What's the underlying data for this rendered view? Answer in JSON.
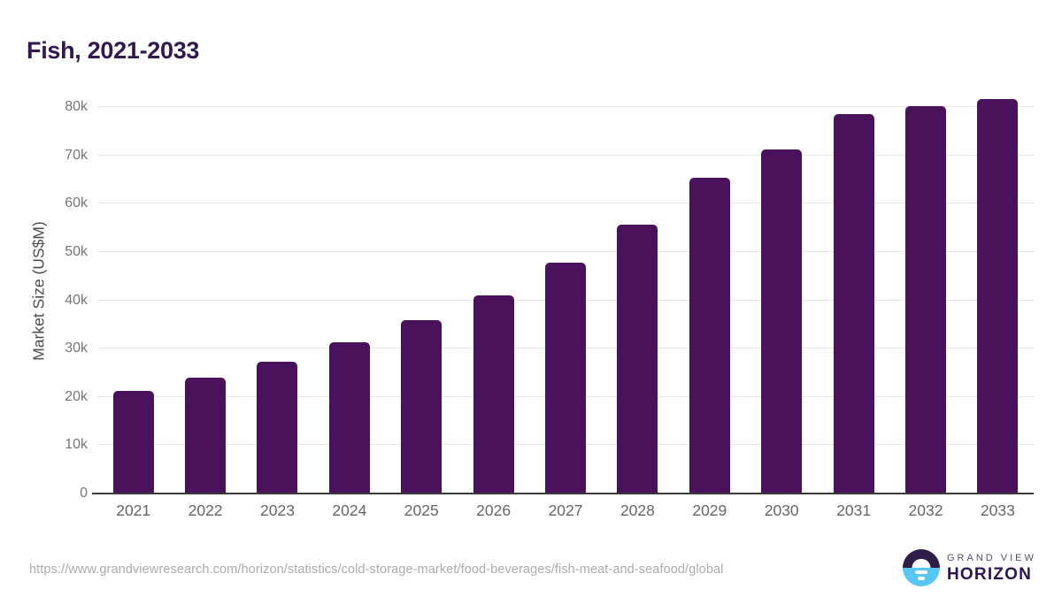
{
  "title": "Fish, 2021-2033",
  "chart_data": {
    "type": "bar",
    "title": "Fish, 2021-2033",
    "categories": [
      "2021",
      "2022",
      "2023",
      "2024",
      "2025",
      "2026",
      "2027",
      "2028",
      "2029",
      "2030",
      "2031",
      "2032",
      "2033"
    ],
    "values": [
      21200,
      23900,
      27200,
      31300,
      35800,
      41100,
      47700,
      55600,
      65300,
      71300,
      78500,
      80100,
      81700
    ],
    "unit": "US$M",
    "xlabel": "",
    "ylabel": "Market Size (US$M)",
    "ylim": [
      0,
      80000
    ],
    "ytick_step": 10000,
    "ytick_labels": [
      "0",
      "10k",
      "20k",
      "30k",
      "40k",
      "50k",
      "60k",
      "70k",
      "80k"
    ],
    "grid": "horizontal",
    "legend": "none",
    "bar_color": "#4a125a"
  },
  "footer": {
    "source_url": "https://www.grandviewresearch.com/horizon/statistics/cold-storage-market/food-beverages/fish-meat-and-seafood/global",
    "logo": {
      "brand_top": "GRAND VIEW",
      "brand_bottom": "HORIZON",
      "purple": "#2e1c49",
      "cyan": "#58c8f2"
    }
  },
  "colors": {
    "title_text": "#31194f",
    "bar": "#4a125a",
    "gridline": "#e8e8e8",
    "axis_line": "#3a3a3a",
    "y_tick_text": "#757575",
    "x_tick_text": "#666666",
    "axis_title_text": "#4d4d4d",
    "url_text": "#ababab",
    "background": "#ffffff"
  }
}
